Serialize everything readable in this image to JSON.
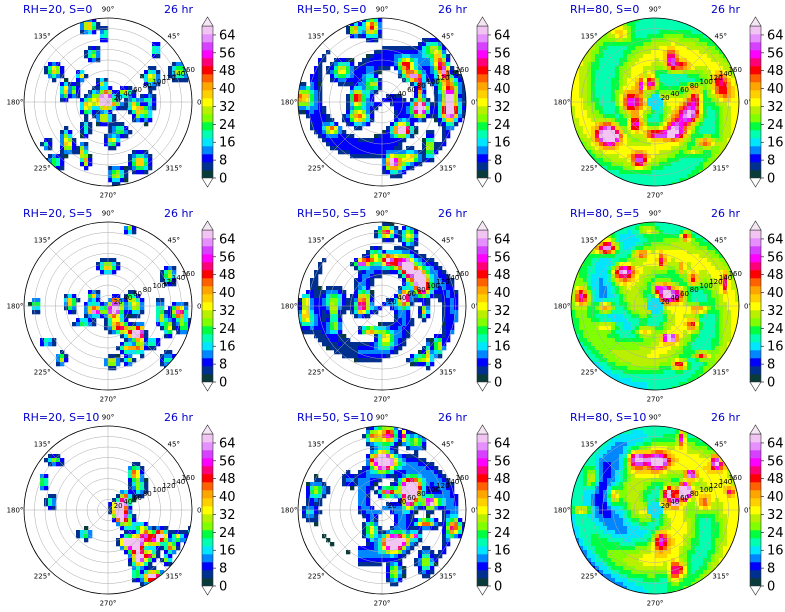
{
  "chart_data": {
    "type": "heatmap",
    "layout": {
      "rows": 3,
      "cols": 3
    },
    "time_label": "26 hr",
    "angular_ticks": [
      "0°",
      "45°",
      "90°",
      "135°",
      "180°",
      "225°",
      "270°",
      "315°"
    ],
    "radial_ticks": [
      20,
      40,
      60,
      80,
      100,
      120,
      140,
      160
    ],
    "colorbar": {
      "ticks": [
        0,
        8,
        16,
        24,
        32,
        40,
        48,
        56,
        64
      ],
      "range": [
        0,
        68
      ],
      "colors": [
        "#0a3b3b",
        "#00308f",
        "#0000ff",
        "#0087ff",
        "#00e6ff",
        "#00ffb0",
        "#00ff40",
        "#7fff00",
        "#b8f000",
        "#ffff00",
        "#ffd000",
        "#ffa500",
        "#ff6000",
        "#ff0000",
        "#ff0077",
        "#ff00ff",
        "#d640ff",
        "#e690ff",
        "#f2c4f2"
      ]
    },
    "panels": [
      {
        "title": "RH=20, S=0",
        "rh": 20,
        "s": 0,
        "coverage": 0.35,
        "intensity": 0.45,
        "mode": "scatter"
      },
      {
        "title": "RH=50, S=0",
        "rh": 50,
        "s": 0,
        "coverage": 0.72,
        "intensity": 0.65,
        "mode": "spiral"
      },
      {
        "title": "RH=80, S=0",
        "rh": 80,
        "s": 0,
        "coverage": 0.97,
        "intensity": 0.75,
        "mode": "full"
      },
      {
        "title": "RH=20, S=5",
        "rh": 20,
        "s": 5,
        "coverage": 0.33,
        "intensity": 0.45,
        "mode": "scatter"
      },
      {
        "title": "RH=50, S=5",
        "rh": 50,
        "s": 5,
        "coverage": 0.68,
        "intensity": 0.7,
        "mode": "spiral"
      },
      {
        "title": "RH=80, S=5",
        "rh": 80,
        "s": 5,
        "coverage": 0.95,
        "intensity": 0.75,
        "mode": "full"
      },
      {
        "title": "RH=20, S=10",
        "rh": 20,
        "s": 10,
        "coverage": 0.3,
        "intensity": 0.5,
        "mode": "scatter"
      },
      {
        "title": "RH=50, S=10",
        "rh": 50,
        "s": 10,
        "coverage": 0.65,
        "intensity": 0.75,
        "mode": "spiral"
      },
      {
        "title": "RH=80, S=10",
        "rh": 80,
        "s": 10,
        "coverage": 0.9,
        "intensity": 0.8,
        "mode": "full"
      }
    ]
  }
}
